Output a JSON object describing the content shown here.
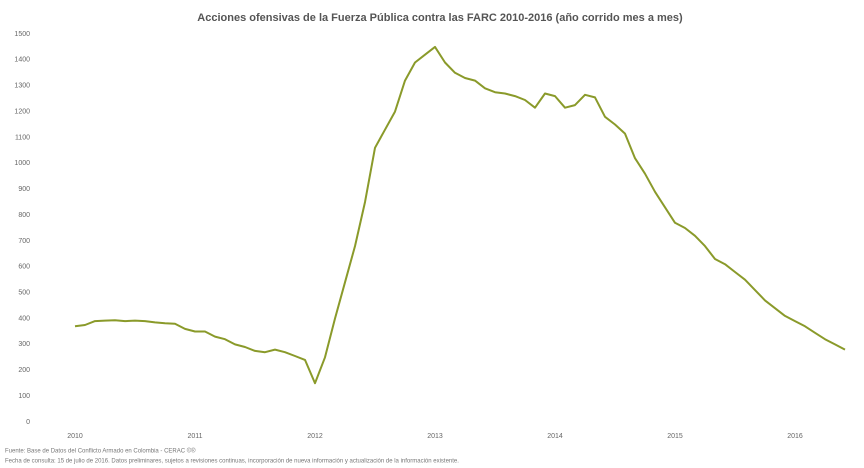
{
  "chart_data": {
    "type": "line",
    "title": "Acciones ofensivas de la Fuerza Pública contra las FARC 2010-2016 (año corrido mes a mes)",
    "source": "Fuente: Base de Datos del Conflicto Armado en Colombia - CERAC ©®",
    "note": "Fecha de consulta: 15 de julio de 2016. Datos preliminares, sujetos a revisiones continuas, incorporación de nueva información y actualización de la información existente.",
    "categories": [
      "2010",
      null,
      null,
      null,
      null,
      null,
      null,
      null,
      null,
      null,
      null,
      null,
      "2011",
      null,
      null,
      null,
      null,
      null,
      null,
      null,
      null,
      null,
      null,
      null,
      "2012",
      null,
      null,
      null,
      null,
      null,
      null,
      null,
      null,
      null,
      null,
      null,
      "2013",
      null,
      null,
      null,
      null,
      null,
      null,
      null,
      null,
      null,
      null,
      null,
      "2014",
      null,
      null,
      null,
      null,
      null,
      null,
      null,
      null,
      null,
      null,
      null,
      "2015",
      null,
      null,
      null,
      null,
      null,
      null,
      null,
      null,
      null,
      null,
      null,
      "2016",
      null,
      null,
      null,
      null,
      null
    ],
    "series": [
      {
        "name": "Acciones ofensivas",
        "color": "#8a9a2a",
        "values": [
          370,
          375,
          390,
          392,
          393,
          390,
          392,
          390,
          385,
          382,
          380,
          360,
          350,
          350,
          330,
          320,
          300,
          290,
          275,
          270,
          280,
          270,
          255,
          240,
          150,
          250,
          400,
          540,
          680,
          850,
          1060,
          1130,
          1200,
          1320,
          1390,
          1420,
          1450,
          1390,
          1350,
          1330,
          1320,
          1290,
          1275,
          1270,
          1260,
          1245,
          1215,
          1270,
          1260,
          1215,
          1225,
          1265,
          1255,
          1180,
          1150,
          1115,
          1020,
          960,
          890,
          830,
          770,
          750,
          720,
          680,
          630,
          610,
          580,
          550,
          510,
          470,
          440,
          410,
          390,
          370,
          345,
          320,
          300,
          280
        ]
      }
    ],
    "ylim": [
      0,
      1500
    ],
    "yticks": [
      0,
      100,
      200,
      300,
      400,
      500,
      600,
      700,
      800,
      900,
      1000,
      1100,
      1200,
      1300,
      1400,
      1500
    ],
    "grid": false
  }
}
